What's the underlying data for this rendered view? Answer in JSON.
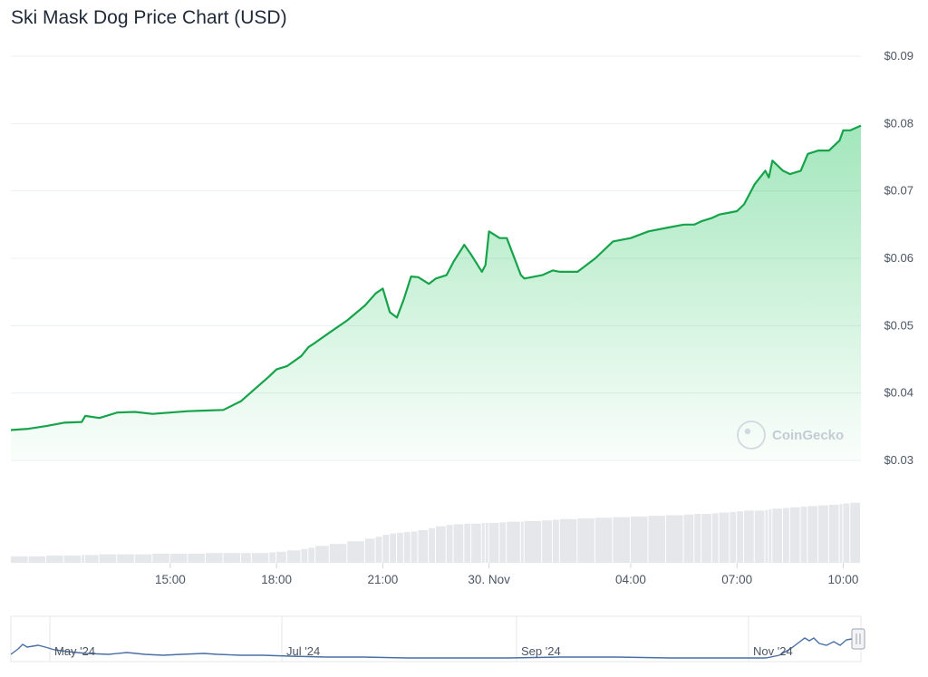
{
  "title": "Ski Mask Dog Price Chart (USD)",
  "watermark": "CoinGecko",
  "colors": {
    "line": "#16a34a",
    "fill": "#22c55e",
    "volume": "#e5e7eb",
    "navigator": "#4a6fa5"
  },
  "chart_data": {
    "type": "area",
    "title": "Ski Mask Dog Price Chart (USD)",
    "y_tick_labels": [
      "$0.09",
      "$0.08",
      "$0.07",
      "$0.06",
      "$0.05",
      "$0.04",
      "$0.03"
    ],
    "y_ticks": [
      0.09,
      0.08,
      0.07,
      0.06,
      0.05,
      0.04,
      0.03
    ],
    "ylim": [
      0.03,
      0.09
    ],
    "x_tick_labels": [
      "15:00",
      "18:00",
      "21:00",
      "30. Nov",
      "04:00",
      "07:00",
      "10:00"
    ],
    "x_tick_hours": [
      15,
      18,
      21,
      24,
      28,
      31,
      34
    ],
    "xlim_hours": [
      10.5,
      34.5
    ],
    "grid": true,
    "x_hours": [
      10.5,
      11.0,
      11.5,
      12.0,
      12.5,
      12.6,
      13.0,
      13.5,
      14.0,
      14.5,
      15.0,
      15.5,
      16.0,
      16.5,
      17.0,
      17.3,
      17.8,
      18.0,
      18.3,
      18.7,
      18.9,
      19.1,
      19.5,
      20.0,
      20.5,
      20.8,
      21.0,
      21.2,
      21.4,
      21.6,
      21.8,
      22.0,
      22.3,
      22.5,
      22.8,
      23.0,
      23.3,
      23.5,
      23.8,
      23.9,
      24.0,
      24.3,
      24.5,
      24.9,
      25.0,
      25.5,
      25.8,
      26.0,
      26.5,
      27.0,
      27.5,
      28.0,
      28.5,
      29.0,
      29.5,
      29.8,
      30.0,
      30.3,
      30.5,
      30.8,
      31.0,
      31.2,
      31.5,
      31.8,
      31.9,
      32.0,
      32.3,
      32.5,
      32.8,
      33.0,
      33.3,
      33.6,
      33.9,
      34.0,
      34.2,
      34.5
    ],
    "price": [
      0.0345,
      0.0347,
      0.0351,
      0.0356,
      0.0357,
      0.0366,
      0.0363,
      0.0371,
      0.0372,
      0.0369,
      0.0371,
      0.0373,
      0.0374,
      0.0375,
      0.0388,
      0.0402,
      0.0425,
      0.0435,
      0.044,
      0.0455,
      0.0468,
      0.0475,
      0.049,
      0.0508,
      0.053,
      0.0548,
      0.0555,
      0.052,
      0.0512,
      0.054,
      0.0573,
      0.0572,
      0.0562,
      0.057,
      0.0575,
      0.0595,
      0.062,
      0.0605,
      0.058,
      0.059,
      0.064,
      0.063,
      0.063,
      0.0575,
      0.057,
      0.0575,
      0.0582,
      0.058,
      0.058,
      0.06,
      0.0625,
      0.063,
      0.064,
      0.0645,
      0.065,
      0.065,
      0.0655,
      0.066,
      0.0665,
      0.0668,
      0.067,
      0.068,
      0.071,
      0.073,
      0.072,
      0.0745,
      0.073,
      0.0725,
      0.073,
      0.0755,
      0.076,
      0.076,
      0.0775,
      0.079,
      0.079,
      0.0797
    ],
    "volume_relative": [
      0.1,
      0.1,
      0.11,
      0.11,
      0.12,
      0.12,
      0.13,
      0.13,
      0.13,
      0.14,
      0.14,
      0.14,
      0.15,
      0.15,
      0.15,
      0.15,
      0.16,
      0.17,
      0.19,
      0.21,
      0.23,
      0.26,
      0.29,
      0.33,
      0.37,
      0.4,
      0.43,
      0.45,
      0.46,
      0.47,
      0.48,
      0.5,
      0.53,
      0.56,
      0.58,
      0.59,
      0.6,
      0.6,
      0.61,
      0.61,
      0.61,
      0.62,
      0.63,
      0.63,
      0.64,
      0.65,
      0.66,
      0.67,
      0.68,
      0.69,
      0.7,
      0.71,
      0.72,
      0.73,
      0.74,
      0.75,
      0.75,
      0.76,
      0.77,
      0.78,
      0.79,
      0.8,
      0.8,
      0.81,
      0.82,
      0.83,
      0.84,
      0.85,
      0.86,
      0.87,
      0.88,
      0.89,
      0.9,
      0.91,
      0.92,
      0.93
    ],
    "navigator_tick_labels": [
      "May '24",
      "Jul '24",
      "Sep '24",
      "Nov '24"
    ]
  }
}
